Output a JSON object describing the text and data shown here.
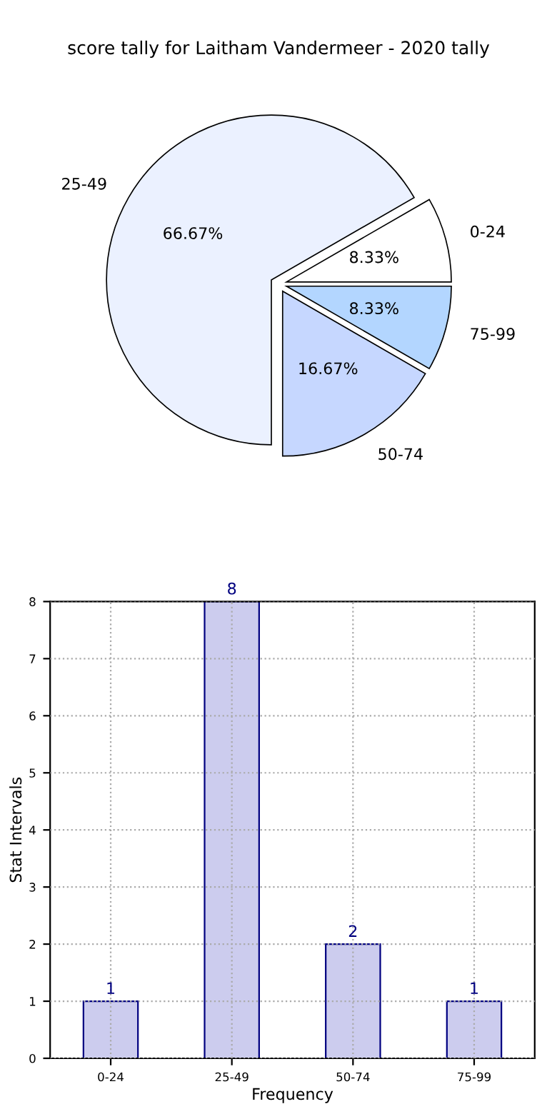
{
  "chart_data": [
    {
      "type": "pie",
      "title": "score tally for Laitham Vandermeer - 2020 tally",
      "categories": [
        "0-24",
        "25-49",
        "50-74",
        "75-99"
      ],
      "values": [
        8.33,
        66.67,
        16.67,
        8.33
      ],
      "value_labels": [
        "8.33%",
        "66.67%",
        "16.67%",
        "8.33%"
      ],
      "colors": [
        "#ffffff",
        "#ebf1ff",
        "#c6d7ff",
        "#b3d6ff"
      ]
    },
    {
      "type": "bar",
      "categories": [
        "0-24",
        "25-49",
        "50-74",
        "75-99"
      ],
      "values": [
        1,
        8,
        2,
        1
      ],
      "color": "#ccccee",
      "xlabel": "Frequency",
      "ylabel": "Stat Intervals",
      "ylim": [
        0,
        8
      ],
      "yticks": [
        0,
        1,
        2,
        3,
        4,
        5,
        6,
        7,
        8
      ],
      "grid": true,
      "data_labels": true
    }
  ]
}
